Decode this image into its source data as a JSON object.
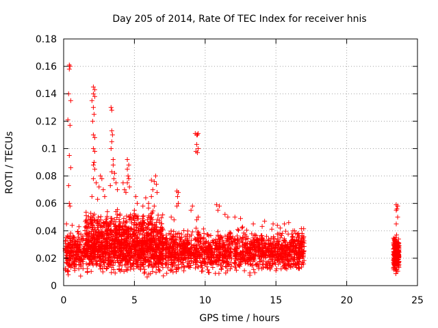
{
  "chart_data": {
    "type": "scatter",
    "title": "Day 205 of 2014, Rate Of TEC Index for receiver hnis",
    "xlabel": "GPS time / hours",
    "ylabel": "ROTI / TECUs",
    "xlim": [
      0,
      25
    ],
    "ylim": [
      0,
      0.18
    ],
    "x_ticks": [
      0,
      5,
      10,
      15,
      20,
      25
    ],
    "x_tick_labels": [
      "0",
      "5",
      "10",
      "15",
      "20",
      "25"
    ],
    "y_ticks": [
      0,
      0.02,
      0.04,
      0.06,
      0.08,
      0.1,
      0.12,
      0.14,
      0.16,
      0.18
    ],
    "y_tick_labels": [
      "0",
      "0.02",
      "0.04",
      "0.06",
      "0.08",
      "0.1",
      "0.12",
      "0.14",
      "0.16",
      "0.18"
    ],
    "grid": true,
    "marker": "+",
    "color": "#ff0000",
    "series": [
      {
        "points": [
          [
            0.4,
            0.161
          ],
          [
            0.4,
            0.158
          ],
          [
            0.45,
            0.16
          ],
          [
            0.35,
            0.14
          ],
          [
            0.5,
            0.135
          ],
          [
            0.3,
            0.121
          ],
          [
            0.45,
            0.117
          ],
          [
            0.4,
            0.095
          ],
          [
            0.5,
            0.086
          ],
          [
            0.35,
            0.073
          ],
          [
            0.4,
            0.06
          ],
          [
            0.45,
            0.058
          ],
          [
            0.2,
            0.045
          ],
          [
            0.6,
            0.044
          ],
          [
            2.1,
            0.145
          ],
          [
            2.2,
            0.143
          ],
          [
            2.1,
            0.14
          ],
          [
            2.2,
            0.138
          ],
          [
            2.0,
            0.135
          ],
          [
            2.1,
            0.13
          ],
          [
            2.15,
            0.125
          ],
          [
            2.05,
            0.12
          ],
          [
            2.1,
            0.11
          ],
          [
            2.2,
            0.108
          ],
          [
            2.1,
            0.1
          ],
          [
            2.2,
            0.098
          ],
          [
            2.15,
            0.09
          ],
          [
            2.1,
            0.088
          ],
          [
            2.2,
            0.085
          ],
          [
            2.1,
            0.078
          ],
          [
            2.3,
            0.075
          ],
          [
            2.6,
            0.08
          ],
          [
            2.7,
            0.078
          ],
          [
            2.5,
            0.072
          ],
          [
            2.8,
            0.07
          ],
          [
            2.9,
            0.065
          ],
          [
            2.4,
            0.063
          ],
          [
            2.0,
            0.065
          ],
          [
            3.35,
            0.13
          ],
          [
            3.4,
            0.128
          ],
          [
            3.4,
            0.113
          ],
          [
            3.45,
            0.11
          ],
          [
            3.4,
            0.105
          ],
          [
            3.35,
            0.1
          ],
          [
            3.5,
            0.092
          ],
          [
            3.5,
            0.088
          ],
          [
            3.4,
            0.083
          ],
          [
            3.6,
            0.082
          ],
          [
            3.55,
            0.078
          ],
          [
            3.7,
            0.075
          ],
          [
            3.3,
            0.073
          ],
          [
            3.8,
            0.07
          ],
          [
            4.5,
            0.092
          ],
          [
            4.6,
            0.088
          ],
          [
            4.5,
            0.085
          ],
          [
            4.55,
            0.08
          ],
          [
            4.6,
            0.078
          ],
          [
            4.5,
            0.075
          ],
          [
            4.65,
            0.072
          ],
          [
            4.2,
            0.075
          ],
          [
            4.3,
            0.07
          ],
          [
            4.4,
            0.068
          ],
          [
            5.1,
            0.065
          ],
          [
            5.2,
            0.06
          ],
          [
            5.0,
            0.055
          ],
          [
            6.2,
            0.077
          ],
          [
            6.4,
            0.076
          ],
          [
            6.5,
            0.08
          ],
          [
            6.55,
            0.074
          ],
          [
            6.3,
            0.07
          ],
          [
            6.6,
            0.068
          ],
          [
            6.2,
            0.065
          ],
          [
            5.8,
            0.064
          ],
          [
            6.0,
            0.06
          ],
          [
            6.4,
            0.058
          ],
          [
            5.6,
            0.058
          ],
          [
            8.0,
            0.069
          ],
          [
            8.1,
            0.068
          ],
          [
            8.05,
            0.065
          ],
          [
            8.1,
            0.06
          ],
          [
            8.0,
            0.058
          ],
          [
            7.6,
            0.05
          ],
          [
            7.8,
            0.048
          ],
          [
            9.3,
            0.111
          ],
          [
            9.4,
            0.11
          ],
          [
            9.5,
            0.111
          ],
          [
            9.45,
            0.11
          ],
          [
            9.4,
            0.103
          ],
          [
            9.5,
            0.1
          ],
          [
            9.35,
            0.098
          ],
          [
            9.45,
            0.097
          ],
          [
            9.1,
            0.058
          ],
          [
            9.0,
            0.055
          ],
          [
            9.5,
            0.05
          ],
          [
            9.4,
            0.048
          ],
          [
            10.8,
            0.059
          ],
          [
            11.0,
            0.058
          ],
          [
            10.9,
            0.055
          ],
          [
            11.4,
            0.052
          ],
          [
            11.6,
            0.05
          ],
          [
            12.1,
            0.05
          ],
          [
            12.5,
            0.049
          ],
          [
            13.4,
            0.045
          ],
          [
            14.2,
            0.047
          ],
          [
            14.8,
            0.045
          ],
          [
            15.1,
            0.044
          ],
          [
            15.3,
            0.042
          ],
          [
            15.6,
            0.045
          ],
          [
            15.9,
            0.046
          ],
          [
            16.2,
            0.04
          ],
          [
            16.4,
            0.038
          ],
          [
            23.5,
            0.059
          ],
          [
            23.6,
            0.058
          ],
          [
            23.55,
            0.056
          ],
          [
            23.5,
            0.055
          ],
          [
            23.6,
            0.05
          ],
          [
            23.5,
            0.045
          ]
        ]
      }
    ],
    "dense_bands": [
      {
        "x_range": [
          0.1,
          17.0
        ],
        "y_range": [
          0.005,
          0.045
        ],
        "count": 2600
      },
      {
        "x_range": [
          1.5,
          7.0
        ],
        "y_range": [
          0.02,
          0.06
        ],
        "count": 500
      },
      {
        "x_range": [
          23.3,
          23.7
        ],
        "y_range": [
          0.005,
          0.04
        ],
        "count": 220
      }
    ]
  }
}
